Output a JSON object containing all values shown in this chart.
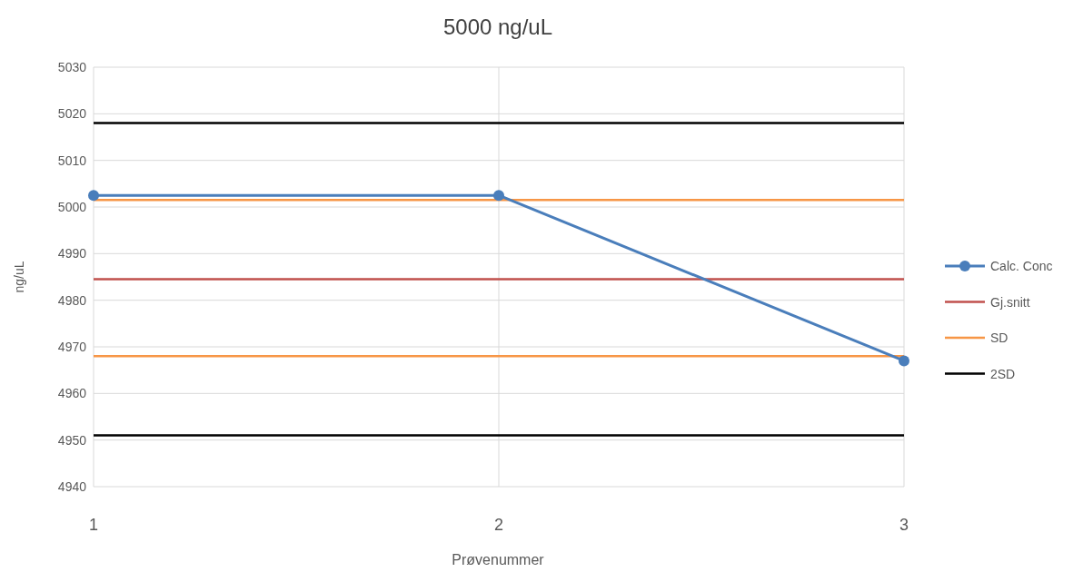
{
  "chart_data": {
    "type": "line",
    "title": "5000 ng/uL",
    "xlabel": "Prøvenummer",
    "ylabel": "ng/uL",
    "categories": [
      "1",
      "2",
      "3"
    ],
    "ylim": [
      4940,
      5030
    ],
    "yticks": [
      4940,
      4950,
      4960,
      4970,
      4980,
      4990,
      5000,
      5010,
      5020,
      5030
    ],
    "grid": true,
    "legend": "right",
    "series": [
      {
        "name": "Calc. Conc",
        "color": "#4a7ebb",
        "values": [
          5002.5,
          5002.5,
          4967
        ],
        "marker": "circle"
      },
      {
        "name": "Gj.snitt",
        "color": "#c0504d",
        "values": [
          4984.5,
          4984.5,
          4984.5
        ],
        "marker": "none"
      },
      {
        "name": "SD",
        "color": "#f79646",
        "values": [
          5001.5,
          5001.5,
          5001.5
        ],
        "marker": "none"
      },
      {
        "color": "#f79646",
        "values": [
          4968,
          4968,
          4968
        ],
        "marker": "none"
      },
      {
        "name": "2SD",
        "color": "#000000",
        "values": [
          5018,
          5018,
          5018
        ],
        "marker": "none"
      },
      {
        "color": "#000000",
        "values": [
          4951,
          4951,
          4951
        ],
        "marker": "none"
      }
    ]
  }
}
